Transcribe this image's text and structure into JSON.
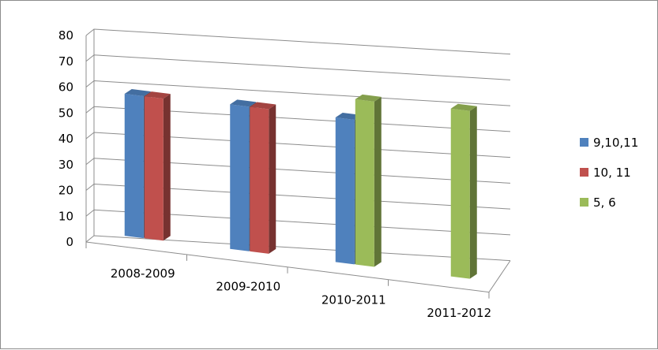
{
  "chart_data": {
    "type": "bar",
    "categories": [
      "2008-2009",
      "2009-2010",
      "2010-2011",
      "2011-2012"
    ],
    "series": [
      {
        "name": "9,10,11",
        "color": "#4f81bd",
        "values": [
          55,
          56,
          56,
          null
        ]
      },
      {
        "name": "10, 11",
        "color": "#c0504d",
        "values": [
          55,
          56,
          null,
          null
        ]
      },
      {
        "name": "5, 6",
        "color": "#9bbb59",
        "values": [
          null,
          null,
          64,
          65
        ]
      }
    ],
    "ylim": [
      0,
      80
    ],
    "yticks": [
      0,
      10,
      20,
      30,
      40,
      50,
      60,
      70,
      80
    ],
    "grid": true,
    "legend_position": "right",
    "title": "",
    "xlabel": "",
    "ylabel": ""
  }
}
